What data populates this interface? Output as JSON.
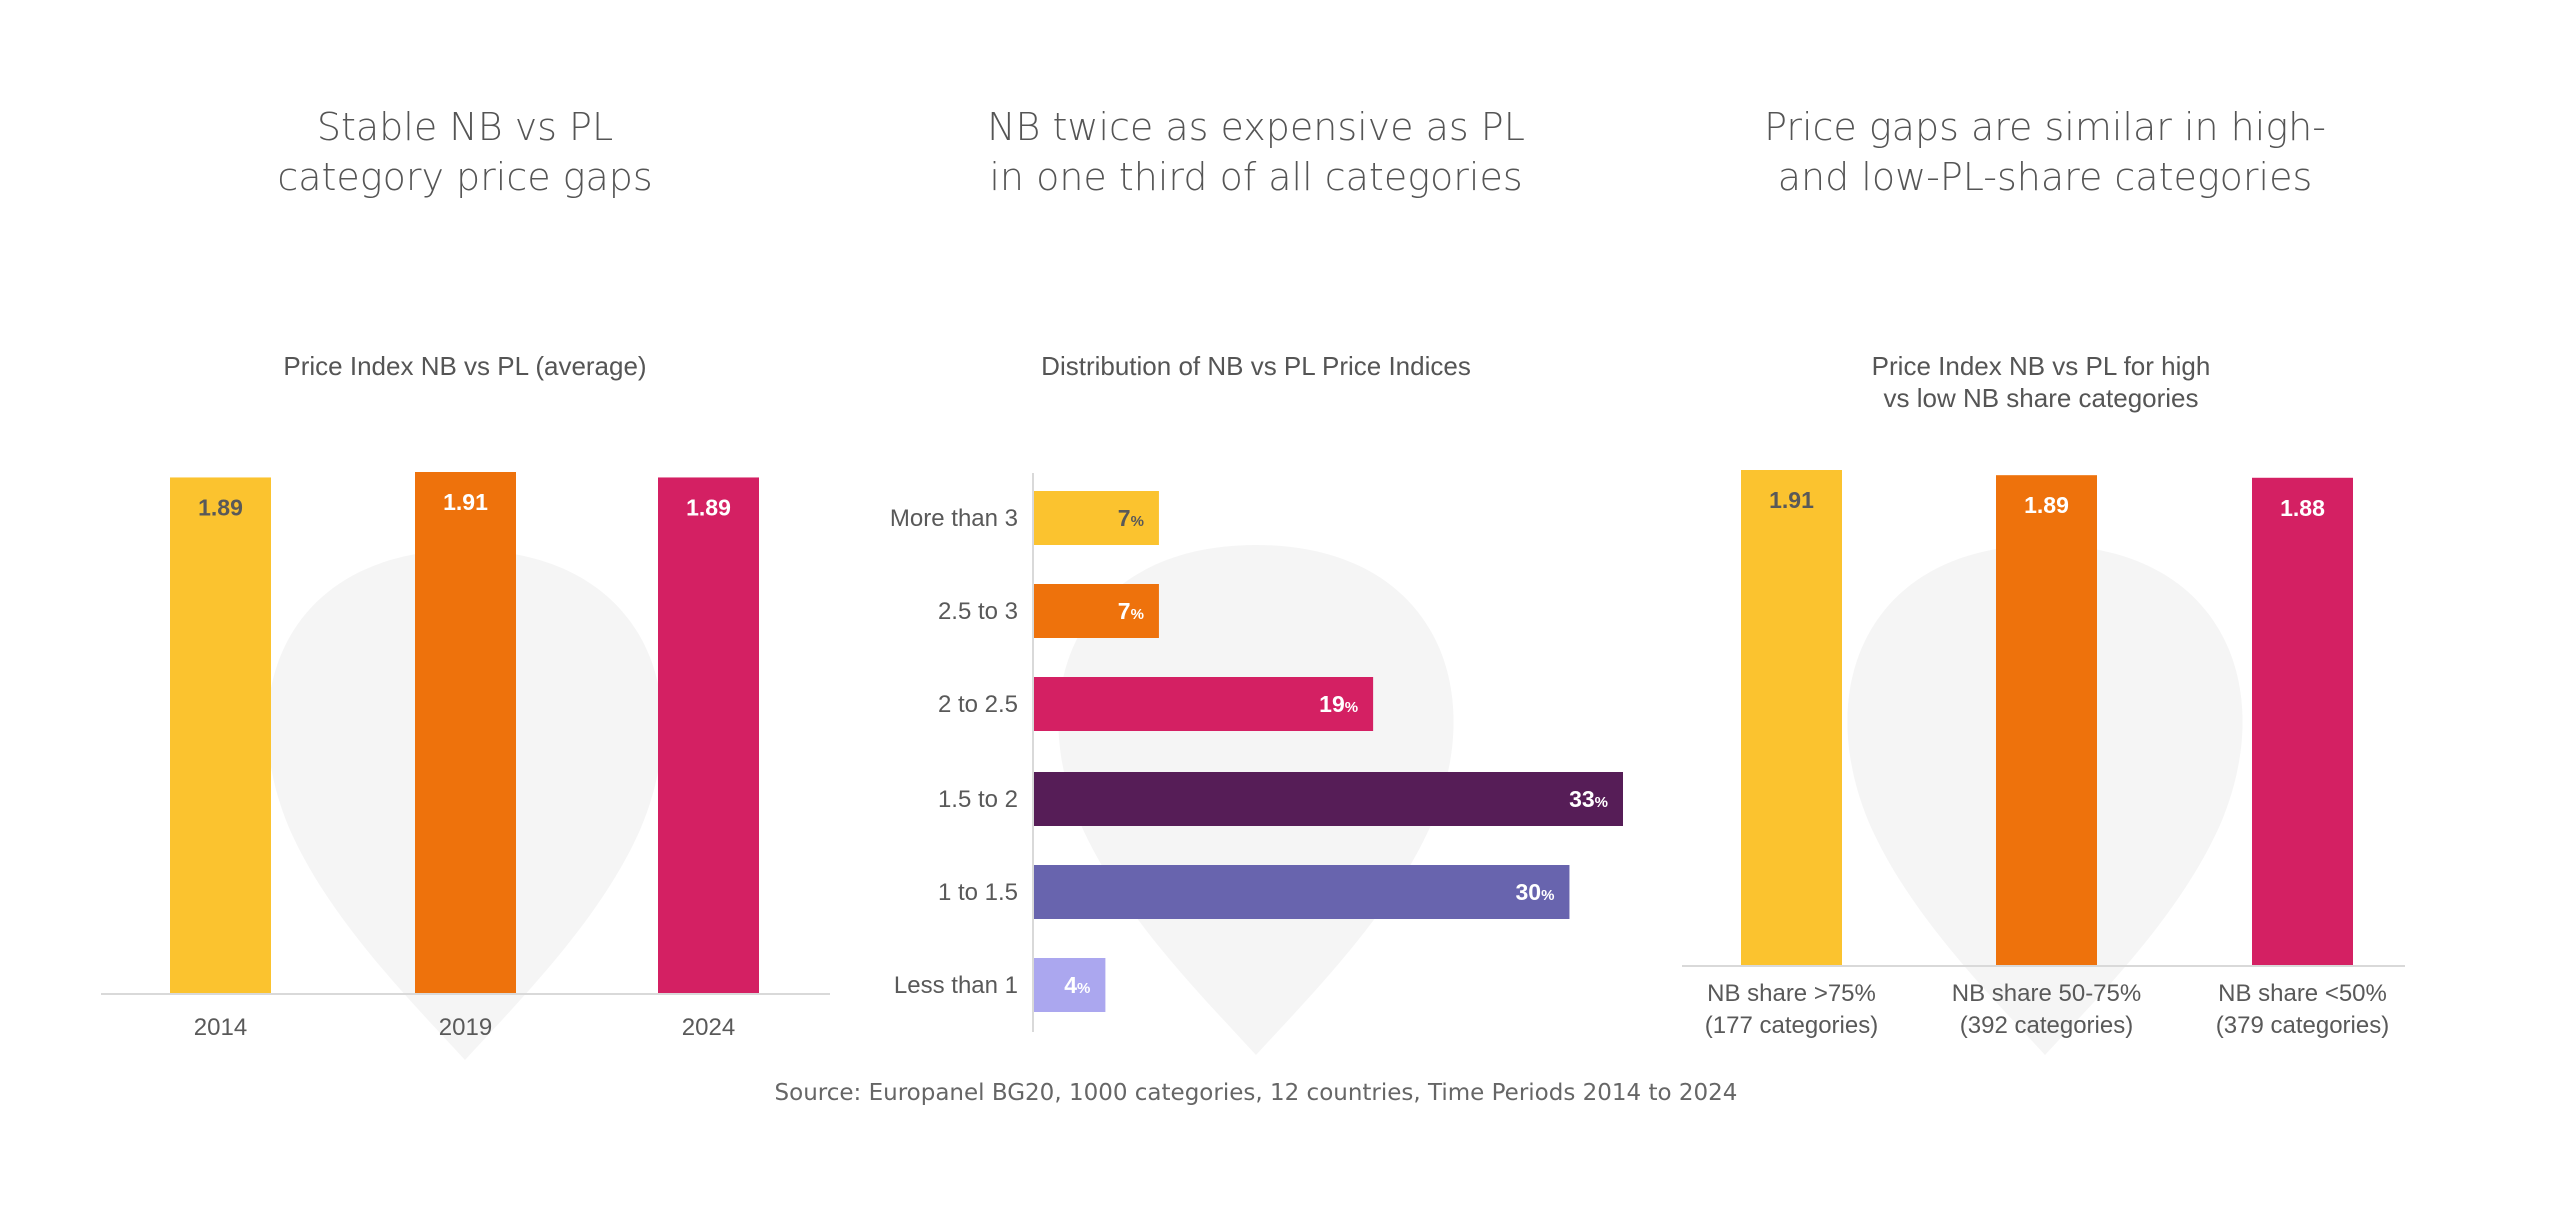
{
  "headlines": [
    {
      "line1": "Stable NB vs PL",
      "line2": "category price gaps"
    },
    {
      "line1": "NB twice as expensive as PL",
      "line2": "in one third of all categories"
    },
    {
      "line1": "Price gaps are similar in high-",
      "line2": "and low-PL-share categories"
    }
  ],
  "source": "Source: Europanel BG20, 1000 categories, 12 countries, Time Periods 2014 to 2024",
  "chart_data": [
    {
      "type": "bar",
      "title": "Price Index NB vs PL (average)",
      "categories": [
        "2014",
        "2019",
        "2024"
      ],
      "values": [
        1.89,
        1.91,
        1.89
      ],
      "labels": [
        "1.89",
        "1.91",
        "1.89"
      ],
      "colors": [
        "#FBC32F",
        "#EE720C",
        "#D42063"
      ],
      "label_colors": [
        "#595959",
        "#ffffff",
        "#ffffff"
      ],
      "ylim": [
        0,
        1.91
      ]
    },
    {
      "type": "bar",
      "orientation": "horizontal",
      "title": "Distribution of NB vs PL Price Indices",
      "categories": [
        "More than 3",
        "2.5 to 3",
        "2 to 2.5",
        "1.5 to 2",
        "1 to 1.5",
        "Less than 1"
      ],
      "values": [
        7,
        7,
        19,
        33,
        30,
        4
      ],
      "labels": [
        "7",
        "7",
        "19",
        "33",
        "30",
        "4"
      ],
      "unit": "%",
      "colors": [
        "#FBC32F",
        "#EE720C",
        "#D42063",
        "#561D57",
        "#6864AE",
        "#ABA7EF"
      ],
      "label_colors": [
        "#595959",
        "#ffffff",
        "#ffffff",
        "#ffffff",
        "#ffffff",
        "#ffffff"
      ],
      "xlim": [
        0,
        33
      ]
    },
    {
      "type": "bar",
      "title_line1": "Price Index NB vs PL for high",
      "title_line2": "vs low NB share categories",
      "categories": [
        {
          "line1": "NB share >75%",
          "line2": "(177 categories)"
        },
        {
          "line1": "NB share 50-75%",
          "line2": "(392 categories)"
        },
        {
          "line1": "NB share <50%",
          "line2": "(379 categories)"
        }
      ],
      "values": [
        1.91,
        1.89,
        1.88
      ],
      "labels": [
        "1.91",
        "1.89",
        "1.88"
      ],
      "colors": [
        "#FBC32F",
        "#EE720C",
        "#D42063"
      ],
      "label_colors": [
        "#595959",
        "#ffffff",
        "#ffffff"
      ],
      "ylim": [
        0,
        1.91
      ]
    }
  ]
}
